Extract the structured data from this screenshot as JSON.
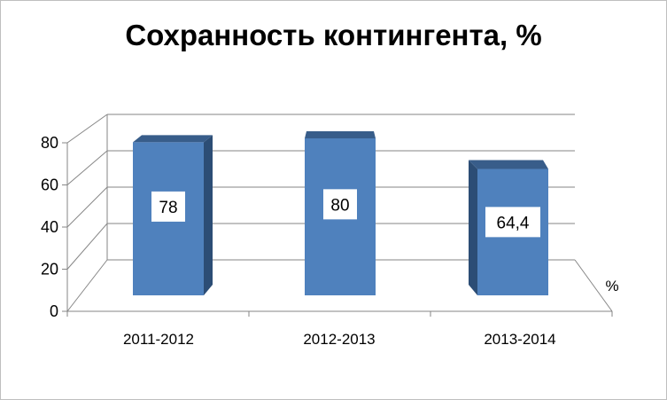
{
  "chart_data": {
    "type": "bar",
    "title": "Сохранность контингента, %",
    "categories": [
      "2011-2012",
      "2012-2013",
      "2013-2014"
    ],
    "values": [
      78,
      80,
      64.4
    ],
    "data_labels": [
      "78",
      "80",
      "64,4"
    ],
    "yticks": [
      "0",
      "20",
      "40",
      "60",
      "80"
    ],
    "ylim": [
      0,
      80
    ],
    "depth_axis_label": "%",
    "grid": true,
    "style": "3d-column",
    "colors": {
      "bar_front": "#4f81bd",
      "bar_top": "#385d8a",
      "bar_side": "#2c4d75",
      "grid": "#868686"
    }
  }
}
